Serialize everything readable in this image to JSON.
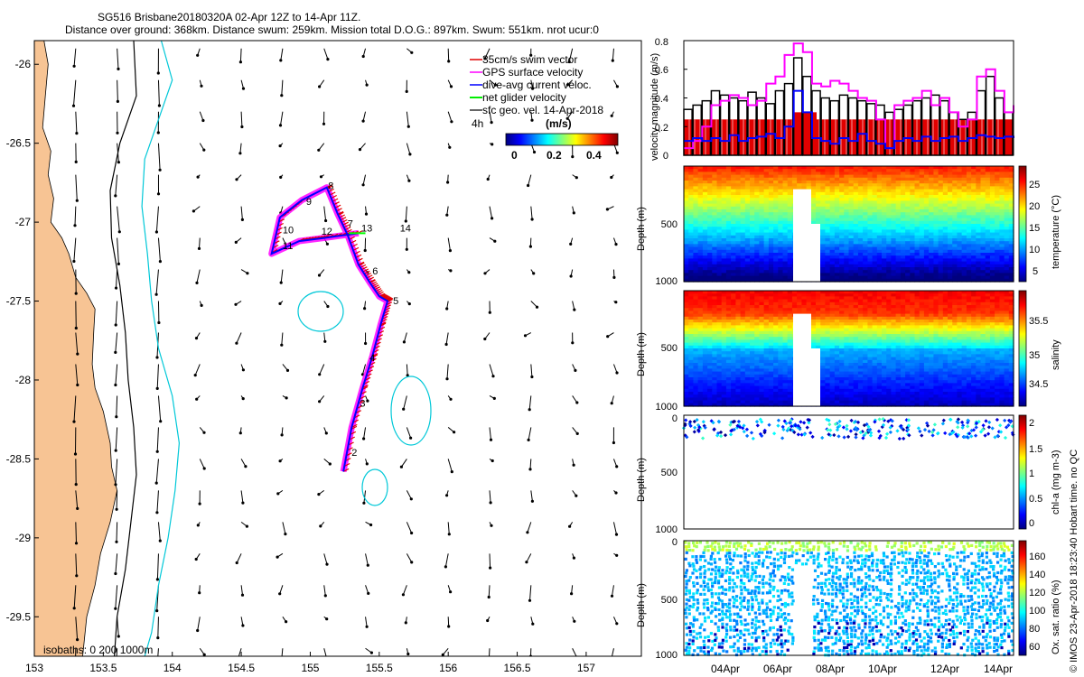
{
  "header": {
    "line1": "SG516 Brisbane20180320A 02-Apr 12Z to 14-Apr 11Z.",
    "line2": "Distance over ground: 368km. Distance swum: 259km. Mission total D.O.G.: 897km. Swum: 551km. nrot ucur:0"
  },
  "side_note": "© IMOS 23-Apr-2018 18:23:40 Hobart time. no QC",
  "colors": {
    "land": "#f7c494",
    "swim": "#e00000",
    "gps": "#ff00ff",
    "dive_avg": "#0000ff",
    "net_glider": "#00ff00",
    "iso200": "#000000",
    "iso1000": "#00c8d8"
  },
  "chart_data": [
    {
      "type": "map",
      "name": "track-map",
      "xlim": [
        153,
        157.4
      ],
      "ylim": [
        -29.75,
        -25.85
      ],
      "x_ticks": [
        "153",
        "153.5",
        "154",
        "154.5",
        "155",
        "155.5",
        "156",
        "156.5",
        "157"
      ],
      "y_ticks": [
        "-26",
        "-26.5",
        "-27",
        "-27.5",
        "-28",
        "-28.5",
        "-29",
        "-29.5"
      ],
      "legend": {
        "items": [
          "35cm/s swim vector",
          "GPS surface velocity",
          "dive-avg current veloc.",
          "net glider velocity",
          "sfc geo. vel. 14-Apr-2018"
        ],
        "lag": "4h",
        "colorbar_title": "(m/s)",
        "colorbar_ticks": [
          "0",
          "0.2",
          "0.4"
        ]
      },
      "isobath_label": "isobaths: 0   200  1000m",
      "track": [
        [
          155.24,
          -28.58
        ],
        [
          155.3,
          -28.3
        ],
        [
          155.38,
          -28.05
        ],
        [
          155.45,
          -27.85
        ],
        [
          155.51,
          -27.65
        ],
        [
          155.56,
          -27.5
        ],
        [
          155.5,
          -27.47
        ],
        [
          155.43,
          -27.38
        ],
        [
          155.35,
          -27.27
        ],
        [
          155.27,
          -27.08
        ],
        [
          155.2,
          -26.95
        ],
        [
          155.12,
          -26.78
        ],
        [
          154.94,
          -26.86
        ],
        [
          154.78,
          -26.97
        ],
        [
          154.72,
          -27.2
        ],
        [
          154.92,
          -27.12
        ],
        [
          155.1,
          -27.1
        ],
        [
          155.35,
          -27.07
        ]
      ],
      "day_labels": [
        {
          "t": "2",
          "lon": 155.3,
          "lat": -28.48
        },
        {
          "t": "3",
          "lon": 155.36,
          "lat": -28.17
        },
        {
          "t": "4",
          "lon": 155.43,
          "lat": -27.88
        },
        {
          "t": "5",
          "lon": 155.6,
          "lat": -27.52
        },
        {
          "t": "6",
          "lon": 155.45,
          "lat": -27.33
        },
        {
          "t": "7",
          "lon": 155.27,
          "lat": -27.03
        },
        {
          "t": "8",
          "lon": 155.13,
          "lat": -26.79
        },
        {
          "t": "9",
          "lon": 154.97,
          "lat": -26.89
        },
        {
          "t": "10",
          "lon": 154.8,
          "lat": -27.07
        },
        {
          "t": "11",
          "lon": 154.8,
          "lat": -27.17
        },
        {
          "t": "12",
          "lon": 155.08,
          "lat": -27.08
        },
        {
          "t": "13",
          "lon": 155.37,
          "lat": -27.06
        },
        {
          "t": "14",
          "lon": 155.65,
          "lat": -27.06
        }
      ]
    },
    {
      "type": "line",
      "name": "velocity-magnitude",
      "ylabel": "velocity magnitude (m/s)",
      "ylim": [
        0,
        0.8
      ],
      "y_ticks": [
        "0",
        "0.2",
        "0.4",
        "0.6",
        "0.8"
      ],
      "series": [
        {
          "name": "swim",
          "values": [
            0.25,
            0.25,
            0.25,
            0.25,
            0.25,
            0.25,
            0.25,
            0.25,
            0.25,
            0.25,
            0.25,
            0.25,
            0.25,
            0.25,
            0.25,
            0.25,
            0.25,
            0.25,
            0.25,
            0.25,
            0.25,
            0.25,
            0.25,
            0.25,
            0.25,
            0.25,
            0.25,
            0.25,
            0.25,
            0.25,
            0.25,
            0.25,
            0.25,
            0.25,
            0.25,
            0.25,
            0.25
          ]
        },
        {
          "name": "gps",
          "values": [
            0.05,
            0.1,
            0.2,
            0.35,
            0.38,
            0.42,
            0.4,
            0.35,
            0.38,
            0.5,
            0.55,
            0.7,
            0.78,
            0.72,
            0.5,
            0.48,
            0.52,
            0.5,
            0.45,
            0.4,
            0.38,
            0.25,
            0.05,
            0.35,
            0.38,
            0.4,
            0.45,
            0.35,
            0.4,
            0.3,
            0.2,
            0.25,
            0.55,
            0.6,
            0.45,
            0.3,
            0.35
          ]
        },
        {
          "name": "dive_avg",
          "values": [
            0.1,
            0.12,
            0.1,
            0.12,
            0.1,
            0.14,
            0.1,
            0.12,
            0.13,
            0.15,
            0.12,
            0.2,
            0.45,
            0.3,
            0.12,
            0.1,
            0.08,
            0.12,
            0.1,
            0.15,
            0.1,
            0.08,
            0.05,
            0.1,
            0.12,
            0.1,
            0.13,
            0.1,
            0.12,
            0.13,
            0.1,
            0.12,
            0.14,
            0.13,
            0.12,
            0.13,
            0.12
          ]
        },
        {
          "name": "net",
          "values": [
            0.32,
            0.35,
            0.38,
            0.45,
            0.42,
            0.4,
            0.38,
            0.44,
            0.4,
            0.36,
            0.45,
            0.5,
            0.68,
            0.55,
            0.45,
            0.4,
            0.38,
            0.42,
            0.4,
            0.38,
            0.36,
            0.35,
            0.3,
            0.32,
            0.35,
            0.38,
            0.4,
            0.42,
            0.38,
            0.3,
            0.25,
            0.3,
            0.45,
            0.55,
            0.4,
            0.3,
            0.35
          ]
        }
      ]
    },
    {
      "type": "heatmap",
      "name": "temperature",
      "ylabel": "Depth (m)",
      "y_ticks": [
        "500",
        "1000"
      ],
      "cbar_label": "temperature (°C)",
      "cbar_ticks": [
        "25",
        "20",
        "15",
        "10",
        "5"
      ]
    },
    {
      "type": "heatmap",
      "name": "salinity",
      "ylabel": "Depth (m)",
      "y_ticks": [
        "500",
        "1000"
      ],
      "cbar_label": "salinity",
      "cbar_ticks": [
        "35.5",
        "35",
        "34.5"
      ]
    },
    {
      "type": "scatter",
      "name": "chl-a",
      "ylabel": "Depth (m)",
      "y_ticks": [
        "0",
        "500",
        "1000"
      ],
      "cbar_label": "chl-a (mg m-3)",
      "cbar_ticks": [
        "2",
        "1.5",
        "1",
        "0.5",
        "0"
      ]
    },
    {
      "type": "scatter",
      "name": "ox-sat",
      "ylabel": "Depth (m)",
      "y_ticks": [
        "0",
        "500",
        "1000"
      ],
      "cbar_label": "Ox. sat. ratio (%)",
      "cbar_ticks": [
        "160",
        "140",
        "120",
        "100",
        "80",
        "60"
      ],
      "x_ticks": [
        "04Apr",
        "06Apr",
        "08Apr",
        "10Apr",
        "12Apr",
        "14Apr"
      ]
    }
  ]
}
